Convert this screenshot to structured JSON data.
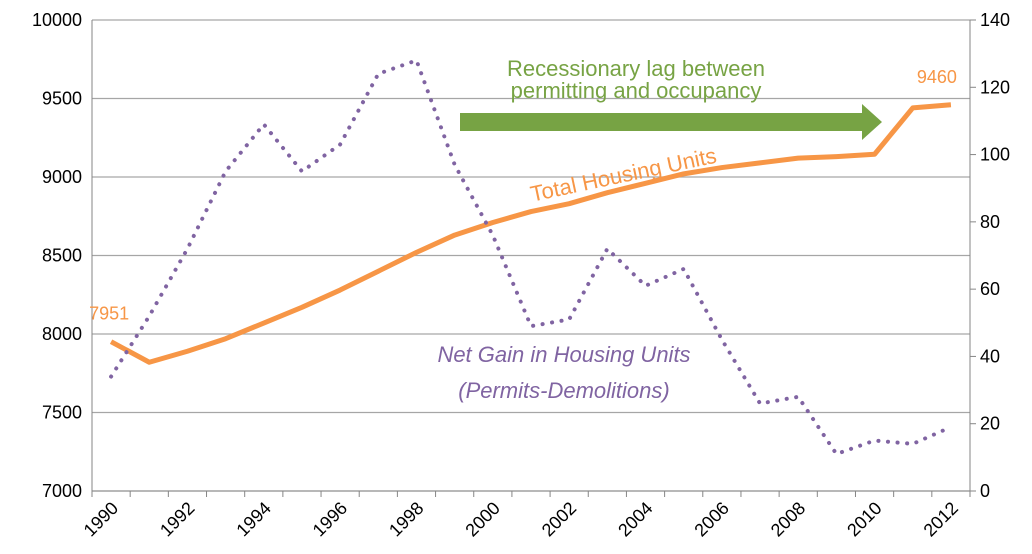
{
  "chart_data": {
    "type": "line",
    "categories": [
      "1990",
      null,
      "1992",
      null,
      "1994",
      null,
      "1996",
      null,
      "1998",
      null,
      "2000",
      null,
      "2002",
      null,
      "2004",
      null,
      "2006",
      null,
      "2008",
      null,
      "2010",
      null,
      "2012"
    ],
    "series": [
      {
        "name": "Total Housing Units",
        "color": "#f79646",
        "style": "solid",
        "axis": "y",
        "values": [
          7951,
          7820,
          7890,
          7970,
          8070,
          8170,
          8280,
          8400,
          8520,
          8630,
          8710,
          8780,
          8830,
          8900,
          8960,
          9020,
          9060,
          9090,
          9120,
          9130,
          9145,
          9440,
          9460
        ]
      },
      {
        "name": "Net Gain in Housing Units",
        "color": "#8064a2",
        "style": "dotted",
        "axis": "y2",
        "values": [
          34,
          52,
          72,
          95,
          109,
          95,
          103,
          124,
          128,
          97,
          76,
          49,
          51,
          72,
          61,
          66,
          45,
          26,
          28,
          11,
          15,
          14,
          19
        ]
      }
    ],
    "ylim": [
      7000,
      10000
    ],
    "yticks": [
      7000,
      7500,
      8000,
      8500,
      9000,
      9500,
      10000
    ],
    "y2lim": [
      0,
      140
    ],
    "y2ticks": [
      0,
      20,
      40,
      60,
      80,
      100,
      120,
      140
    ],
    "grid": true,
    "annotations": [
      "(Permits-Demolitions)",
      "Recessionary lag between",
      "permitting and occupancy"
    ],
    "arrow_color": "#77a344"
  }
}
